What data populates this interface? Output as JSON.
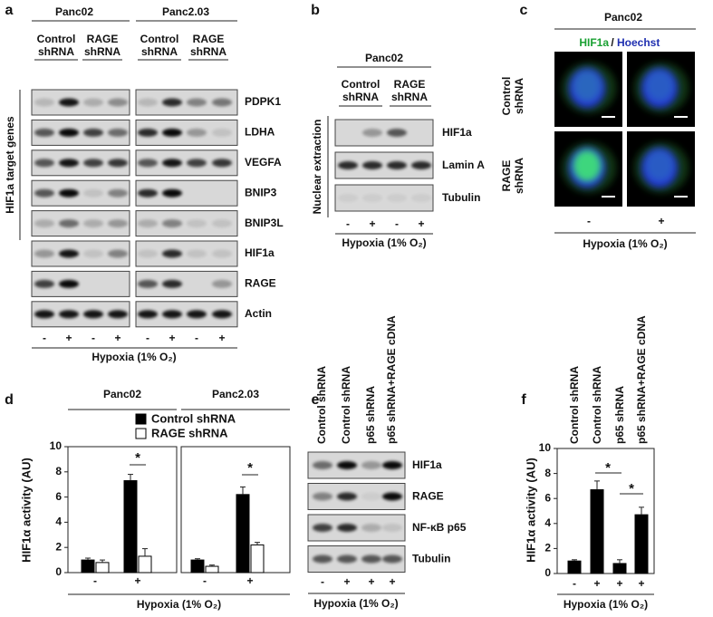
{
  "figure": {
    "panel_a": {
      "label": "a",
      "groups": [
        "Panc02",
        "Panc2.03"
      ],
      "conditions": [
        "Control shRNA",
        "RAGE shRNA"
      ],
      "bracket_label": "HIF1a target genes",
      "rows": [
        "PDPK1",
        "LDHA",
        "VEGFA",
        "BNIP3",
        "BNIP3L",
        "HIF1a",
        "RAGE",
        "Actin"
      ],
      "signs": [
        "-",
        "+"
      ],
      "xlabel": "Hypoxia (1% O₂)"
    },
    "panel_b": {
      "label": "b",
      "group": "Panc02",
      "conditions": [
        "Control shRNA",
        "RAGE shRNA"
      ],
      "bracket_label": "Nuclear extraction",
      "rows": [
        "HIF1a",
        "Lamin A",
        "Tubulin"
      ],
      "signs": [
        "-",
        "+"
      ],
      "xlabel": "Hypoxia (1% O₂)"
    },
    "panel_c": {
      "label": "c",
      "group": "Panc02",
      "stain_1": "HIF1a",
      "separator": "/",
      "stain_2": "Hoechst",
      "rows": [
        "Control shRNA",
        "RAGE shRNA"
      ],
      "signs": [
        "-",
        "+"
      ],
      "xlabel": "Hypoxia (1% O₂)"
    },
    "panel_d": {
      "label": "d"
    },
    "panel_e": {
      "label": "e",
      "columns": [
        "Control shRNA",
        "Control shRNA",
        "p65 shRNA",
        "p65 shRNA+RAGE cDNA"
      ],
      "rows": [
        "HIF1a",
        "RAGE",
        "NF-κB p65",
        "Tubulin"
      ],
      "signs": [
        "-",
        "+",
        "+",
        "+"
      ],
      "xlabel": "Hypoxia (1% O₂)"
    },
    "panel_f": {
      "label": "f"
    }
  },
  "chart_data": [
    {
      "type": "bar",
      "title": "Panc02",
      "ylabel": "HIF1α activity (AU)",
      "xlabel": "Hypoxia (1% O₂)",
      "categories": [
        "-",
        "+"
      ],
      "series": [
        {
          "name": "Control shRNA",
          "color": "#000000",
          "values": [
            1.0,
            7.3
          ],
          "errors": [
            0.15,
            0.5
          ]
        },
        {
          "name": "RAGE shRNA",
          "color": "#ffffff",
          "values": [
            0.8,
            1.3
          ],
          "errors": [
            0.2,
            0.6
          ]
        }
      ],
      "ylim": [
        0,
        10
      ],
      "yticks": [
        0,
        2,
        4,
        6,
        8,
        10
      ],
      "annotations": [
        "*"
      ]
    },
    {
      "type": "bar",
      "title": "Panc2.03",
      "categories": [
        "-",
        "+"
      ],
      "series": [
        {
          "color": "#000000",
          "values": [
            1.0,
            6.2
          ],
          "errors": [
            0.1,
            0.6
          ]
        },
        {
          "color": "#ffffff",
          "values": [
            0.5,
            2.2
          ],
          "errors": [
            0.1,
            0.2
          ]
        }
      ],
      "ylim": [
        0,
        10
      ],
      "annotations": [
        "*"
      ]
    },
    {
      "type": "bar",
      "ylabel": "HIF1α activity (AU)",
      "xlabel": "Hypoxia (1% O₂)",
      "label": "f",
      "categories": [
        "Control shRNA",
        "Control shRNA",
        "p65 shRNA",
        "p65 shRNA+RAGE cDNA"
      ],
      "hypoxia": [
        "-",
        "+",
        "+",
        "+"
      ],
      "values": [
        1.0,
        6.7,
        0.8,
        4.7
      ],
      "errors": [
        0.1,
        0.7,
        0.3,
        0.6
      ],
      "color": "#000000",
      "ylim": [
        0,
        10
      ],
      "yticks": [
        0,
        2,
        4,
        6,
        8,
        10
      ],
      "annotations": [
        "*",
        "*"
      ]
    }
  ]
}
